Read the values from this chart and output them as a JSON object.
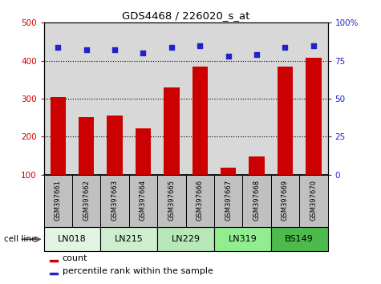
{
  "title": "GDS4468 / 226020_s_at",
  "samples": [
    "GSM397661",
    "GSM397662",
    "GSM397663",
    "GSM397664",
    "GSM397665",
    "GSM397666",
    "GSM397667",
    "GSM397668",
    "GSM397669",
    "GSM397670"
  ],
  "bar_values": [
    305,
    252,
    255,
    222,
    330,
    385,
    118,
    148,
    385,
    408
  ],
  "scatter_values": [
    84,
    82,
    82,
    80,
    84,
    85,
    78,
    79,
    84,
    85
  ],
  "cell_lines": [
    {
      "name": "LN018",
      "start": 0,
      "end": 2
    },
    {
      "name": "LN215",
      "start": 2,
      "end": 4
    },
    {
      "name": "LN229",
      "start": 4,
      "end": 6
    },
    {
      "name": "LN319",
      "start": 6,
      "end": 8
    },
    {
      "name": "BS149",
      "start": 8,
      "end": 10
    }
  ],
  "cell_line_colors": [
    "#e2f4e2",
    "#ceeece",
    "#b8e8b8",
    "#90ee90",
    "#4cbb4c"
  ],
  "ylim_left": [
    100,
    500
  ],
  "ylim_right": [
    0,
    100
  ],
  "yticks_left": [
    100,
    200,
    300,
    400,
    500
  ],
  "yticks_right": [
    0,
    25,
    50,
    75,
    100
  ],
  "bar_color": "#cc0000",
  "scatter_color": "#2222cc",
  "grid_color": "black",
  "background_color": "white",
  "plot_bg": "#d8d8d8",
  "label_box_color": "#c0c0c0"
}
